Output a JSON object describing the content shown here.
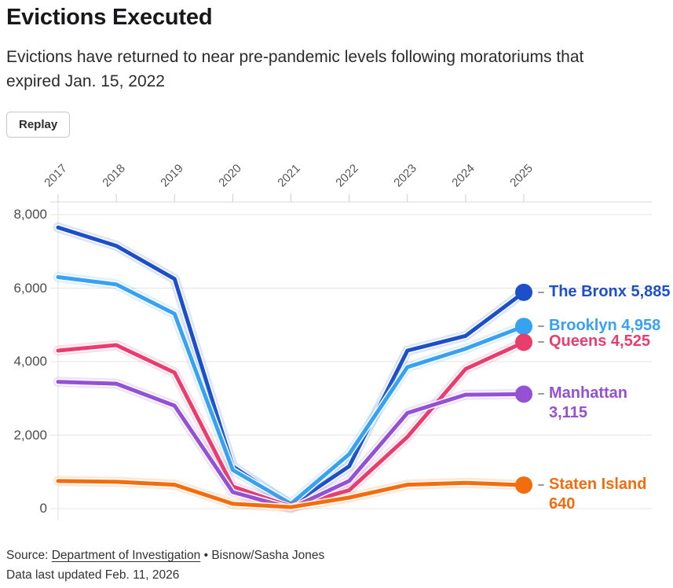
{
  "header": {
    "title": "Evictions Executed",
    "subtitle": "Evictions have returned to near pre-pandemic levels following moratoriums that expired Jan. 15, 2022",
    "replay_label": "Replay"
  },
  "chart_data": {
    "type": "line",
    "title": "Evictions Executed",
    "x": [
      2017,
      2018,
      2019,
      2020,
      2021,
      2022,
      2023,
      2024,
      2025
    ],
    "x_tick_labels": [
      "2017",
      "2018",
      "2019",
      "2020",
      "2021",
      "2022",
      "2023",
      "2024",
      "2025"
    ],
    "y_tick_labels": [
      "8,000",
      "6,000",
      "4,000",
      "2,000",
      "0"
    ],
    "y_tick_values": [
      8000,
      6000,
      4000,
      2000,
      0
    ],
    "ylim": [
      0,
      8000
    ],
    "grid": true,
    "legend_position": "right-end-labels",
    "series": [
      {
        "name": "The Bronx",
        "color": "#1d50c8",
        "values": [
          7650,
          7150,
          6250,
          1150,
          90,
          1150,
          4300,
          4700,
          5885
        ],
        "end_value": "5,885",
        "label_lines": [
          "The Bronx 5,885"
        ]
      },
      {
        "name": "Brooklyn",
        "color": "#38a1f0",
        "values": [
          6300,
          6100,
          5300,
          1050,
          130,
          1480,
          3850,
          4350,
          4958
        ],
        "end_value": "4,958",
        "label_lines": [
          "Brooklyn 4,958"
        ]
      },
      {
        "name": "Queens",
        "color": "#e83e6f",
        "values": [
          4300,
          4450,
          3700,
          600,
          50,
          500,
          1950,
          3800,
          4525
        ],
        "end_value": "4,525",
        "label_lines": [
          "Queens 4,525"
        ]
      },
      {
        "name": "Manhattan",
        "color": "#9551d4",
        "values": [
          3450,
          3400,
          2800,
          450,
          10,
          750,
          2600,
          3100,
          3115
        ],
        "end_value": "3,115",
        "label_lines": [
          "Manhattan",
          "3,115"
        ]
      },
      {
        "name": "Staten Island",
        "color": "#f26d0d",
        "values": [
          750,
          730,
          650,
          130,
          40,
          300,
          650,
          700,
          640
        ],
        "end_value": "640",
        "label_lines": [
          "Staten Island",
          "640"
        ]
      }
    ]
  },
  "footer": {
    "source_prefix": "Source: ",
    "source_link": "Department of Investigation",
    "source_separator": " • ",
    "source_credit": "Bisnow/Sasha Jones",
    "updated": "Data last updated Feb. 11, 2026"
  }
}
